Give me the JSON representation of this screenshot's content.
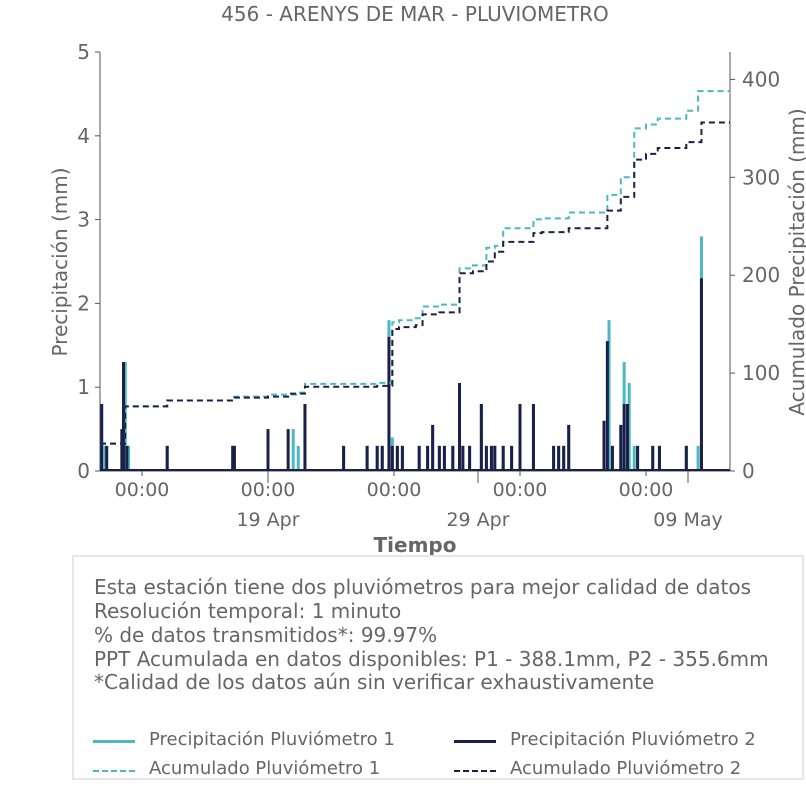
{
  "chart_data": {
    "type": "bar+line",
    "title": "456 - ARENYS DE MAR - PLUVIOMETRO",
    "xlabel": "Tiempo",
    "ylabel_left": "Precipitación (mm)",
    "ylabel_right": "Acumulado Precipitación (mm)",
    "ylim_left": [
      0,
      5
    ],
    "ylim_right": [
      0,
      428
    ],
    "yticks_left": [
      "0",
      "1",
      "2",
      "3",
      "4",
      "5"
    ],
    "yticks_right": [
      "0",
      "100",
      "200",
      "300",
      "400"
    ],
    "xlim_days": [
      0,
      37.5
    ],
    "xticks_top": [
      {
        "day": 2.5,
        "label": "00:00"
      },
      {
        "day": 10,
        "label": "00:00"
      },
      {
        "day": 17.5,
        "label": "00:00"
      },
      {
        "day": 25,
        "label": "00:00"
      },
      {
        "day": 32.5,
        "label": "00:00"
      }
    ],
    "xticks_bottom": [
      {
        "day": 10,
        "label": "19 Apr"
      },
      {
        "day": 22.5,
        "label": "29 Apr"
      },
      {
        "day": 35,
        "label": "09 May"
      }
    ],
    "series": [
      {
        "name": "Precipitación Pluviómetro 1",
        "kind": "bar",
        "axis": "left",
        "color": "#4db8c0",
        "x": [
          0.1,
          0.3,
          1.4,
          1.5,
          1.7,
          4.0,
          7.9,
          8.0,
          10.0,
          11.5,
          11.8,
          12.2,
          14.5,
          15.9,
          16.5,
          16.8,
          17.2,
          17.4,
          17.7,
          18.0,
          19.0,
          19.5,
          19.8,
          20.2,
          20.5,
          21.0,
          21.4,
          21.6,
          22.0,
          22.7,
          23.0,
          23.3,
          23.5,
          24.0,
          24.5,
          25.0,
          25.8,
          27.0,
          27.3,
          27.6,
          27.9,
          30.0,
          30.3,
          30.5,
          31.0,
          31.2,
          31.5,
          31.8,
          32.0,
          32.9,
          33.3,
          34.9,
          35.6,
          35.8
        ],
        "values": [
          0.8,
          0.3,
          0.9,
          1.3,
          0.3,
          0.3,
          0.3,
          0.3,
          0.5,
          0.5,
          0.3,
          0.8,
          0.3,
          0.3,
          0.3,
          0.3,
          1.8,
          0.4,
          0.3,
          0.3,
          0.3,
          0.3,
          0.55,
          0.3,
          0.3,
          0.3,
          1.05,
          0.3,
          0.3,
          0.8,
          0.3,
          0.3,
          0.3,
          0.3,
          0.3,
          0.55,
          0.8,
          0.3,
          0.3,
          0.3,
          0.55,
          0.6,
          1.8,
          0.3,
          0.55,
          1.3,
          1.05,
          0.3,
          0.3,
          0.3,
          0.3,
          0.3,
          0.3,
          2.8
        ]
      },
      {
        "name": "Precipitación Pluviómetro 2",
        "kind": "bar",
        "axis": "left",
        "color": "#1c2048",
        "x": [
          0.1,
          0.4,
          1.3,
          1.4,
          1.6,
          4.0,
          7.9,
          8.0,
          10.0,
          11.2,
          12.2,
          14.5,
          15.9,
          16.5,
          16.8,
          17.2,
          17.4,
          17.7,
          18.0,
          19.0,
          19.5,
          19.8,
          20.2,
          20.5,
          21.0,
          21.4,
          21.6,
          22.0,
          22.7,
          23.0,
          23.3,
          23.5,
          24.0,
          24.5,
          25.0,
          25.8,
          27.0,
          27.3,
          27.6,
          27.9,
          30.0,
          30.2,
          30.5,
          31.0,
          31.2,
          31.4,
          32.0,
          32.9,
          33.3,
          34.9,
          35.8
        ],
        "values": [
          0.8,
          0.3,
          0.5,
          1.3,
          0.3,
          0.3,
          0.3,
          0.3,
          0.5,
          0.5,
          0.8,
          0.3,
          0.3,
          0.3,
          0.3,
          1.6,
          0.3,
          0.3,
          0.3,
          0.3,
          0.3,
          0.55,
          0.3,
          0.3,
          0.3,
          1.05,
          0.3,
          0.3,
          0.8,
          0.3,
          0.3,
          0.3,
          0.3,
          0.3,
          0.8,
          0.8,
          0.3,
          0.3,
          0.3,
          0.55,
          0.6,
          1.55,
          0.3,
          0.55,
          0.8,
          0.8,
          0.3,
          0.3,
          0.3,
          0.3,
          2.3
        ]
      },
      {
        "name": "Acumulado Pluviómetro 1",
        "kind": "step",
        "axis": "right",
        "color": "#4db8c0",
        "dash": "6,4",
        "x": [
          0,
          0.3,
          1.5,
          4.0,
          8.0,
          10.0,
          11.8,
          12.2,
          16.5,
          17.4,
          17.8,
          18.8,
          19.2,
          20.2,
          21.4,
          22.2,
          23.0,
          23.5,
          24.0,
          25.8,
          26.3,
          27.9,
          30.2,
          31.0,
          31.8,
          32.5,
          33.2,
          34.9,
          35.6,
          37.5
        ],
        "values": [
          28,
          28,
          66,
          72,
          76,
          78,
          80,
          89,
          90,
          152,
          154,
          156,
          168,
          170,
          207,
          210,
          228,
          230,
          248,
          257,
          258,
          264,
          282,
          300,
          350,
          354,
          360,
          368,
          388,
          388
        ]
      },
      {
        "name": "Acumulado Pluviómetro 2",
        "kind": "step",
        "axis": "right",
        "color": "#1c2048",
        "dash": "6,4",
        "x": [
          0,
          0.3,
          1.5,
          4.0,
          8.0,
          10.0,
          11.2,
          12.2,
          16.5,
          17.4,
          17.8,
          18.8,
          19.2,
          20.2,
          21.4,
          22.2,
          23.0,
          23.5,
          24.0,
          25.8,
          26.3,
          27.9,
          30.2,
          31.0,
          31.8,
          32.5,
          33.2,
          34.9,
          35.8,
          37.5
        ],
        "values": [
          28,
          28,
          66,
          72,
          75,
          76,
          79,
          86,
          87,
          145,
          147,
          149,
          160,
          162,
          202,
          204,
          214,
          224,
          234,
          243,
          244,
          248,
          266,
          280,
          318,
          324,
          330,
          336,
          356,
          356
        ]
      }
    ],
    "legend_placement": "bottom"
  },
  "info": {
    "line1": "Esta estación tiene dos pluviómetros para mejor calidad de datos",
    "line2": "Resolución temporal: 1 minuto",
    "line3": "% de datos transmitidos*: 99.97%",
    "line4": "PPT Acumulada en datos disponibles: P1 - 388.1mm, P2 - 355.6mm",
    "line5": "*Calidad de los datos aún sin verificar exhaustivamente"
  },
  "legend": {
    "p1": "Precipitación Pluviómetro 1",
    "p2": "Precipitación Pluviómetro 2",
    "a1": "Acumulado Pluviómetro 1",
    "a2": "Acumulado Pluviómetro 2"
  },
  "colors": {
    "teal": "#4db8c0",
    "navy": "#1c2048",
    "text": "#666666",
    "axis": "#555555"
  }
}
